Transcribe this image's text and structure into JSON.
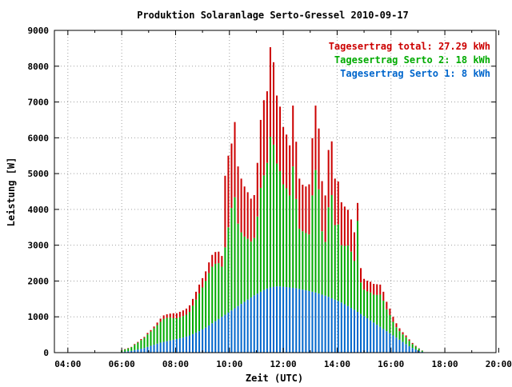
{
  "chart_data": {
    "type": "bar",
    "title": "Produktion Solaranlage Serto-Gressel 2010-09-17",
    "xlabel": "Zeit (UTC)",
    "ylabel": "Leistung [W]",
    "x_unit": "hours (UTC)",
    "xlim": [
      3.5,
      19.9
    ],
    "ylim": [
      0,
      9000
    ],
    "x_ticks": [
      4,
      6,
      8,
      10,
      12,
      14,
      16,
      18,
      20
    ],
    "x_tick_labels": [
      "04:00",
      "06:00",
      "08:00",
      "10:00",
      "12:00",
      "14:00",
      "16:00",
      "18:00",
      "20:00"
    ],
    "y_ticks": [
      0,
      1000,
      2000,
      3000,
      4000,
      5000,
      6000,
      7000,
      8000,
      9000
    ],
    "y_tick_labels": [
      "0",
      "1000",
      "2000",
      "3000",
      "4000",
      "5000",
      "6000",
      "7000",
      "8000",
      "9000"
    ],
    "grid": true,
    "stacked": true,
    "legend_position": "top-right",
    "legend": [
      {
        "label": "Tagesertrag total: 27.29 kWh",
        "color": "#cc0000"
      },
      {
        "label": "Tagesertrag Serto 2: 18 kWh",
        "color": "#00aa00"
      },
      {
        "label": "Tagesertrag Serto 1: 8 kWh",
        "color": "#0066cc"
      }
    ],
    "x": [
      6.0,
      6.12,
      6.24,
      6.36,
      6.48,
      6.6,
      6.72,
      6.84,
      6.96,
      7.08,
      7.2,
      7.32,
      7.44,
      7.56,
      7.68,
      7.8,
      7.92,
      8.04,
      8.16,
      8.28,
      8.4,
      8.52,
      8.64,
      8.76,
      8.88,
      9.0,
      9.12,
      9.24,
      9.36,
      9.48,
      9.6,
      9.72,
      9.84,
      9.96,
      10.08,
      10.2,
      10.32,
      10.44,
      10.56,
      10.68,
      10.8,
      10.92,
      11.04,
      11.16,
      11.28,
      11.4,
      11.52,
      11.64,
      11.76,
      11.88,
      12.0,
      12.12,
      12.24,
      12.36,
      12.48,
      12.6,
      12.72,
      12.84,
      12.96,
      13.08,
      13.2,
      13.32,
      13.44,
      13.56,
      13.68,
      13.8,
      13.92,
      14.04,
      14.16,
      14.28,
      14.4,
      14.52,
      14.64,
      14.76,
      14.88,
      15.0,
      15.12,
      15.24,
      15.36,
      15.48,
      15.6,
      15.72,
      15.84,
      15.96,
      16.08,
      16.2,
      16.32,
      16.44,
      16.56,
      16.68,
      16.8,
      16.92,
      17.04,
      17.16
    ],
    "series": [
      {
        "name": "Tagesertrag Serto 1: 8 kWh",
        "color": "#0066cc",
        "values": [
          20,
          30,
          40,
          50,
          70,
          90,
          110,
          130,
          160,
          190,
          220,
          250,
          280,
          300,
          320,
          340,
          360,
          380,
          400,
          420,
          450,
          480,
          520,
          560,
          600,
          650,
          700,
          760,
          820,
          880,
          940,
          1000,
          1060,
          1120,
          1180,
          1240,
          1300,
          1360,
          1420,
          1480,
          1540,
          1600,
          1650,
          1700,
          1750,
          1790,
          1820,
          1840,
          1850,
          1850,
          1840,
          1830,
          1820,
          1810,
          1800,
          1780,
          1760,
          1740,
          1720,
          1700,
          1680,
          1650,
          1620,
          1590,
          1560,
          1520,
          1480,
          1440,
          1400,
          1350,
          1300,
          1250,
          1200,
          1140,
          1080,
          1020,
          960,
          900,
          840,
          780,
          720,
          660,
          600,
          540,
          480,
          420,
          360,
          300,
          240,
          180,
          130,
          90,
          50,
          25
        ]
      },
      {
        "name": "Tagesertrag Serto 2: 18 kWh",
        "color": "#00aa00",
        "values": [
          40,
          60,
          80,
          100,
          150,
          190,
          240,
          280,
          350,
          400,
          460,
          520,
          580,
          640,
          650,
          640,
          600,
          580,
          590,
          600,
          610,
          660,
          790,
          920,
          1050,
          1170,
          1300,
          1460,
          1580,
          1600,
          1560,
          1400,
          1880,
          2380,
          2860,
          3100,
          2300,
          2000,
          1820,
          1700,
          1560,
          1600,
          2150,
          2900,
          3200,
          3510,
          4210,
          3970,
          3430,
          3220,
          2860,
          2760,
          2570,
          3390,
          2490,
          1680,
          1630,
          1600,
          1580,
          2690,
          3420,
          2910,
          1770,
          1500,
          2500,
          2880,
          2080,
          2140,
          1600,
          1630,
          1690,
          1570,
          1360,
          2540,
          880,
          740,
          750,
          780,
          780,
          830,
          900,
          790,
          610,
          510,
          380,
          290,
          240,
          210,
          190,
          150,
          110,
          80,
          60,
          30
        ]
      },
      {
        "name": "Tagesertrag total: 27.29 kWh",
        "color": "#cc0000",
        "values": [
          10,
          10,
          10,
          10,
          20,
          20,
          30,
          30,
          40,
          40,
          50,
          70,
          90,
          100,
          100,
          110,
          140,
          140,
          150,
          160,
          170,
          180,
          190,
          220,
          250,
          260,
          270,
          300,
          330,
          330,
          320,
          300,
          2000,
          2000,
          1800,
          2100,
          1600,
          1500,
          1400,
          1300,
          1200,
          1200,
          1500,
          1900,
          2100,
          2000,
          2500,
          2300,
          1900,
          1800,
          1600,
          1500,
          1400,
          1700,
          1600,
          1400,
          1300,
          1300,
          1400,
          1600,
          1800,
          1700,
          1400,
          1300,
          1600,
          1500,
          1300,
          1200,
          1200,
          1100,
          1000,
          900,
          800,
          500,
          400,
          300,
          300,
          300,
          300,
          300,
          280,
          250,
          210,
          180,
          140,
          110,
          80,
          60,
          50,
          40,
          30,
          20,
          10,
          5
        ]
      }
    ]
  }
}
